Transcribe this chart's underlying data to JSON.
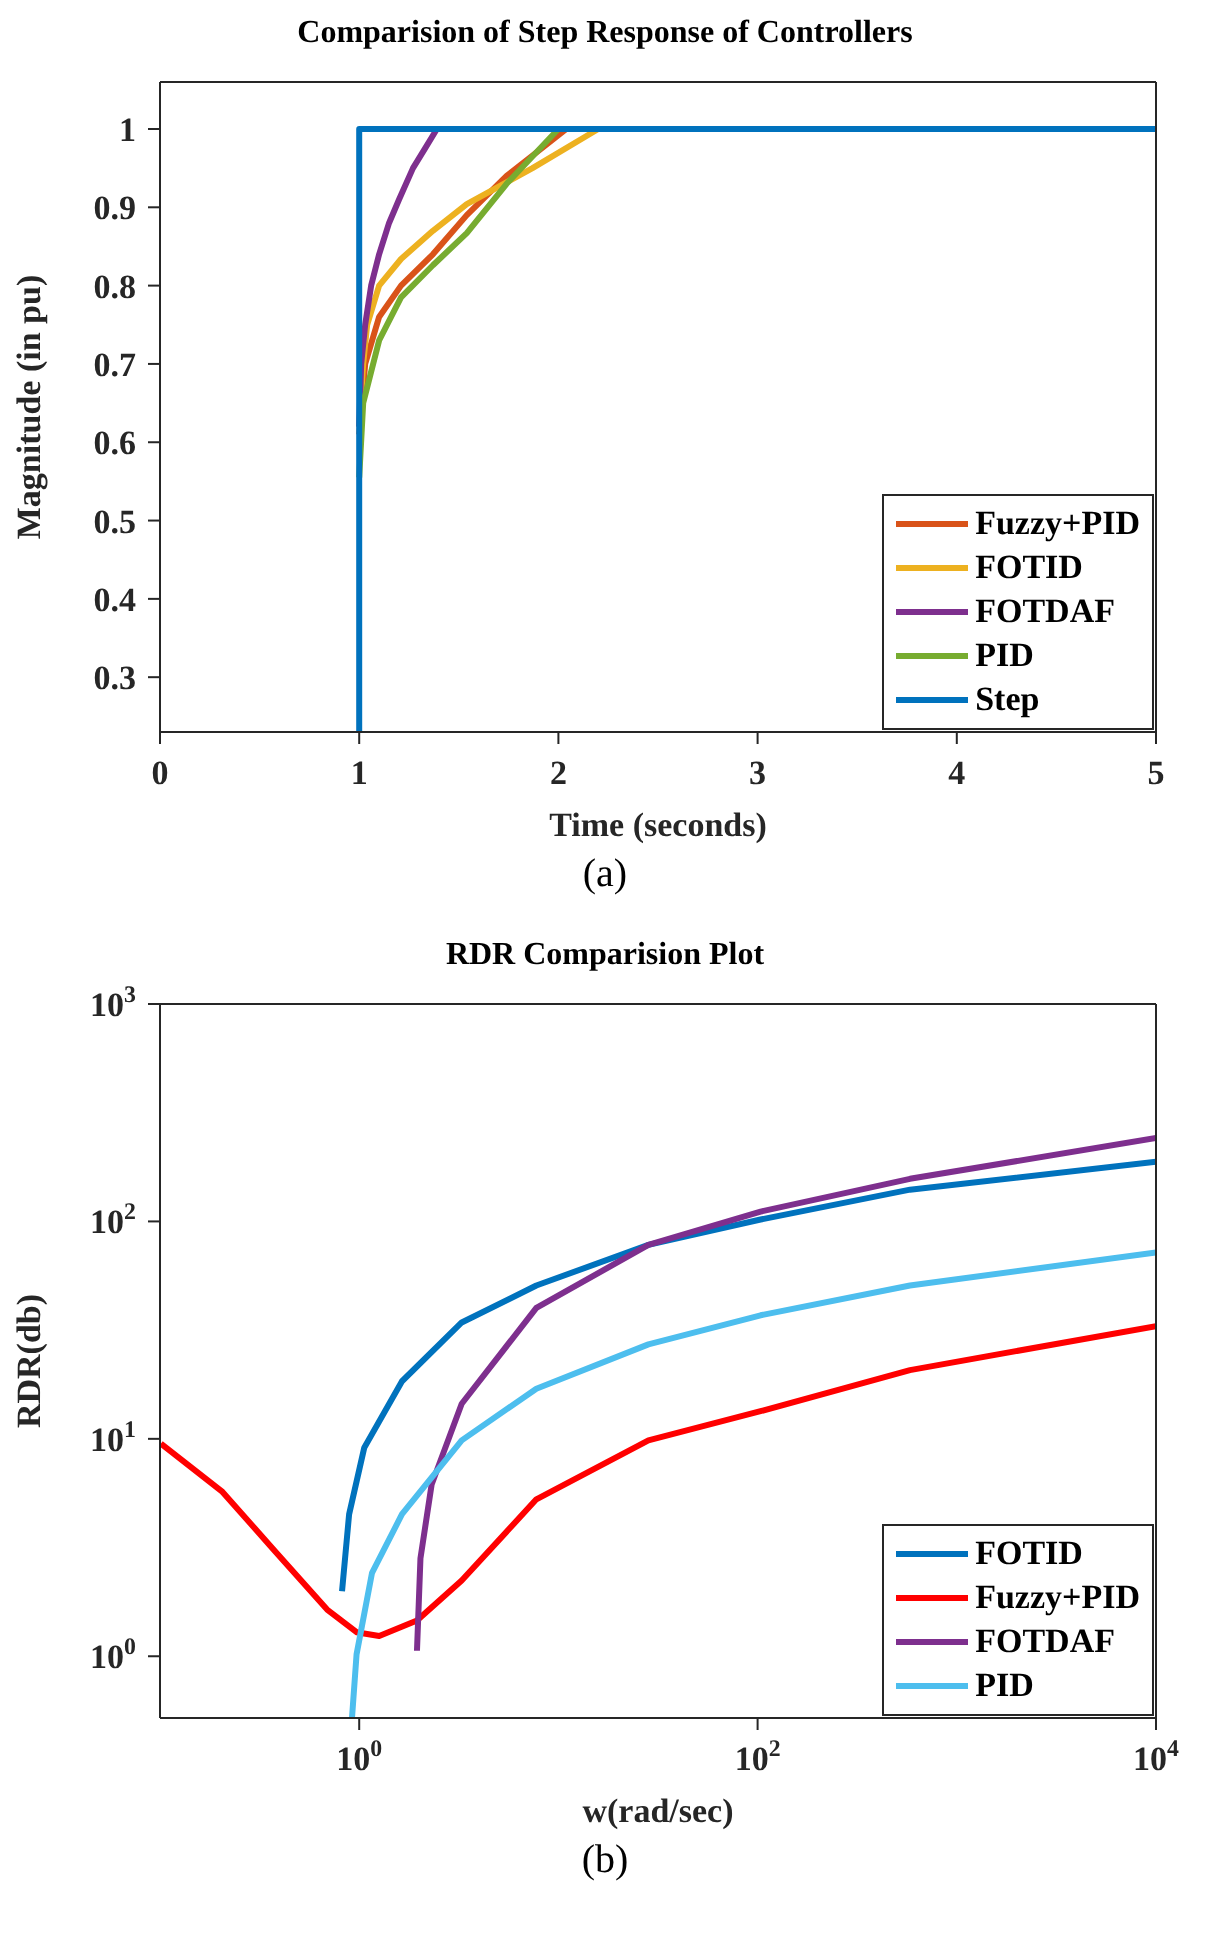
{
  "chart_data": [
    {
      "type": "line",
      "title": "Comparision of Step Response of Controllers",
      "xlabel": "Time (seconds)",
      "ylabel": "Magnitude (in pu)",
      "xlim": [
        0,
        5
      ],
      "ylim": [
        0.23,
        1.06
      ],
      "xticks": [
        0,
        1,
        2,
        3,
        4,
        5
      ],
      "yticks": [
        0.3,
        0.4,
        0.5,
        0.6,
        0.7,
        0.8,
        0.9,
        1
      ],
      "grid": false,
      "legend": "bottom right",
      "annotations": [
        "(a)"
      ],
      "series": [
        {
          "name": "Fuzzy+PID",
          "color": "#d95319",
          "x": [
            1,
            1.03,
            1.1,
            1.21,
            1.37,
            1.54,
            1.74,
            2.04
          ],
          "values": [
            0.61,
            0.7,
            0.76,
            0.8,
            0.84,
            0.89,
            0.94,
            1
          ]
        },
        {
          "name": "FOTID",
          "color": "#edb120",
          "x": [
            1,
            1.02,
            1.04,
            1.1,
            1.21,
            1.37,
            1.54,
            1.87,
            2.2
          ],
          "values": [
            0.62,
            0.7,
            0.75,
            0.8,
            0.834,
            0.87,
            0.904,
            0.95,
            1
          ]
        },
        {
          "name": "FOTDAF",
          "color": "#7e2f8e",
          "x": [
            1,
            1.01,
            1.03,
            1.06,
            1.1,
            1.15,
            1.2,
            1.27,
            1.33,
            1.39
          ],
          "values": [
            0.62,
            0.7,
            0.75,
            0.8,
            0.84,
            0.88,
            0.91,
            0.95,
            0.975,
            1
          ]
        },
        {
          "name": "PID",
          "color": "#77ac30",
          "x": [
            1,
            1.02,
            1.1,
            1.21,
            1.37,
            1.54,
            1.74,
            2.0
          ],
          "values": [
            0.555,
            0.65,
            0.73,
            0.785,
            0.826,
            0.867,
            0.93,
            1
          ]
        },
        {
          "name": "Step",
          "color": "#0072bd",
          "x": [
            1,
            1,
            5
          ],
          "values": [
            0.23,
            1,
            1
          ]
        }
      ]
    },
    {
      "type": "line",
      "title": "RDR Comparision Plot",
      "xlabel": "w(rad/sec)",
      "ylabel": "RDR(db)",
      "log": "xy",
      "xlim": [
        0.1,
        10000
      ],
      "ylim": [
        0.52,
        1000
      ],
      "xticks": [
        {
          "value": 1,
          "label": "10$^{0}$"
        },
        {
          "value": 100,
          "label": "10$^{2}$"
        },
        {
          "value": 10000,
          "label": "10$^{4}$"
        }
      ],
      "yticks": [
        {
          "value": 1,
          "label": "10$^{0}$"
        },
        {
          "value": 10,
          "label": "10$^{1}$"
        },
        {
          "value": 100,
          "label": "10$^{2}$"
        },
        {
          "value": 1000,
          "label": "10$^{3}$"
        }
      ],
      "grid": false,
      "legend": "bottom right",
      "annotations": [
        "(b)"
      ],
      "series": [
        {
          "name": "FOTID",
          "color": "#0072bd",
          "x": [
            0.82,
            0.89,
            1.06,
            1.64,
            3.27,
            7.75,
            28.3,
            103.5,
            582,
            10000
          ],
          "values": [
            1.99,
            4.5,
            9.1,
            18.4,
            34.3,
            50.7,
            78,
            102,
            140,
            188
          ]
        },
        {
          "name": "Fuzzy+PID",
          "color": "#ff0000",
          "x": [
            0.101,
            0.206,
            0.377,
            0.69,
            0.97,
            1.26,
            1.95,
            3.27,
            7.75,
            28.3,
            103.5,
            582,
            10000
          ],
          "values": [
            9.5,
            5.7,
            3.05,
            1.64,
            1.29,
            1.24,
            1.46,
            2.23,
            5.27,
            9.84,
            13.4,
            20.7,
            33
          ]
        },
        {
          "name": "FOTDAF",
          "color": "#7e2f8e",
          "x": [
            1.95,
            2.03,
            2.31,
            3.27,
            7.75,
            28.3,
            103.5,
            582,
            10000
          ],
          "values": [
            1.06,
            2.82,
            6.17,
            14.5,
            40,
            78,
            111,
            157,
            242
          ]
        },
        {
          "name": "PID",
          "color": "#4dbeee",
          "x": [
            0.92,
            0.97,
            1.16,
            1.64,
            3.27,
            7.75,
            28.3,
            103.5,
            582,
            10000
          ],
          "values": [
            0.52,
            1.02,
            2.42,
            4.5,
            9.84,
            17,
            27.2,
            37,
            50.7,
            72
          ]
        }
      ]
    }
  ]
}
